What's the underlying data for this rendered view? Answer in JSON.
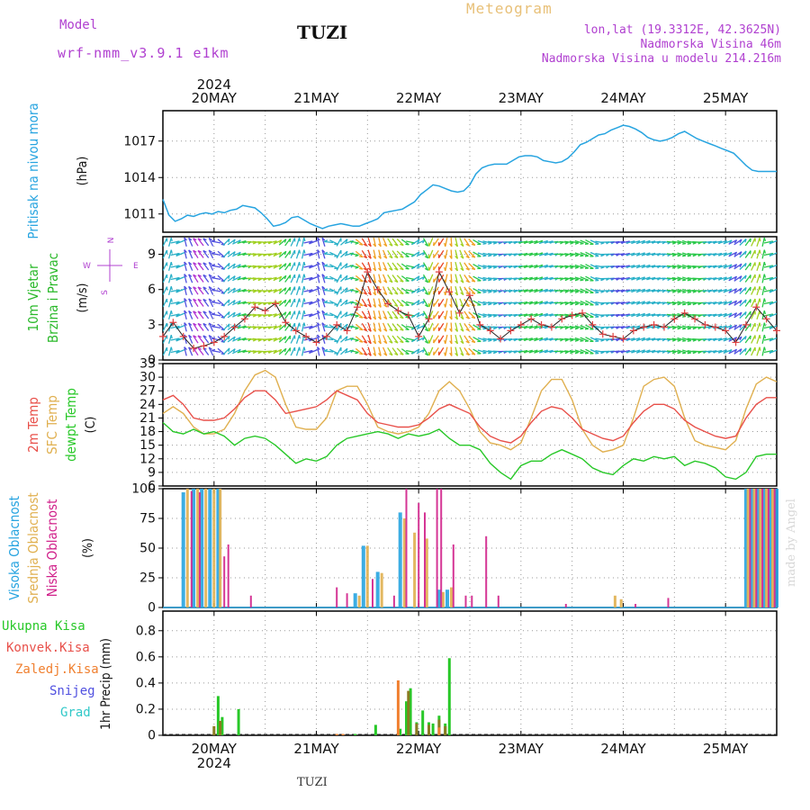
{
  "header": {
    "model_label": "Model",
    "model_name": "wrf-nmm_v3.9.1 e1km",
    "station": "TUZI",
    "meteogram": "Meteogram",
    "lonlat": "lon,lat (19.3312E, 42.3625N)",
    "altitude": "Nadmorska Visina 46m",
    "model_altitude": "Nadmorska Visina u modelu 214.216m",
    "credit": "made by Angel",
    "footer_station": "TUZI"
  },
  "colors": {
    "pressure": "#27a4e0",
    "temp2m": "#e8504a",
    "sfc_temp": "#e0b050",
    "dewpt": "#28c828",
    "high_cloud": "#27a4e0",
    "mid_cloud": "#e0b050",
    "low_cloud": "#d0208a",
    "precip_total": "#28c828",
    "precip_conv": "#e8504a",
    "precip_frozen": "#f08030",
    "snow": "#5050e0",
    "grad": "#30c8c8",
    "wind_label": "#28b828",
    "compass": "#b040d0"
  },
  "chart_data": [
    {
      "type": "line",
      "panel": "pressure",
      "ylabel_lines": [
        "Pritisak na nivou mora",
        "(hPa)"
      ],
      "ylim": [
        1009.5,
        1019.5
      ],
      "yticks": [
        1011,
        1014,
        1017
      ],
      "x_axis": {
        "top_year": "2024",
        "bottom_year": "2024",
        "dates": [
          "20MAY",
          "21MAY",
          "22MAY",
          "23MAY",
          "24MAY",
          "25MAY"
        ],
        "range_days": [
          -0.5,
          5.5
        ]
      },
      "grid": true,
      "x": [
        -0.5,
        -0.44,
        -0.38,
        -0.32,
        -0.26,
        -0.2,
        -0.14,
        -0.08,
        -0.02,
        0.04,
        0.1,
        0.16,
        0.22,
        0.28,
        0.34,
        0.4,
        0.46,
        0.52,
        0.58,
        0.64,
        0.7,
        0.76,
        0.82,
        0.88,
        0.94,
        1.0,
        1.06,
        1.12,
        1.18,
        1.24,
        1.3,
        1.36,
        1.42,
        1.48,
        1.54,
        1.6,
        1.66,
        1.72,
        1.78,
        1.84,
        1.9,
        1.96,
        2.02,
        2.08,
        2.14,
        2.2,
        2.26,
        2.32,
        2.38,
        2.44,
        2.5,
        2.56,
        2.62,
        2.68,
        2.74,
        2.8,
        2.86,
        2.92,
        2.98,
        3.04,
        3.1,
        3.16,
        3.22,
        3.28,
        3.34,
        3.4,
        3.46,
        3.52,
        3.58,
        3.64,
        3.7,
        3.76,
        3.82,
        3.88,
        3.94,
        4.0,
        4.06,
        4.12,
        4.18,
        4.24,
        4.3,
        4.36,
        4.42,
        4.48,
        4.54,
        4.6,
        4.66,
        4.72,
        4.78,
        4.84,
        4.9,
        4.96,
        5.02,
        5.08,
        5.14,
        5.2,
        5.26,
        5.32,
        5.38,
        5.44,
        5.5
      ],
      "y": [
        1012.2,
        1010.9,
        1010.4,
        1010.6,
        1010.9,
        1010.8,
        1011.0,
        1011.1,
        1011.0,
        1011.2,
        1011.1,
        1011.3,
        1011.4,
        1011.7,
        1011.6,
        1011.5,
        1011.1,
        1010.6,
        1010.0,
        1010.1,
        1010.3,
        1010.7,
        1010.8,
        1010.5,
        1010.2,
        1010.0,
        1009.8,
        1010.0,
        1010.1,
        1010.2,
        1010.1,
        1010.0,
        1010.0,
        1010.2,
        1010.4,
        1010.6,
        1011.1,
        1011.2,
        1011.3,
        1011.4,
        1011.7,
        1012.0,
        1012.6,
        1013.0,
        1013.4,
        1013.3,
        1013.1,
        1012.9,
        1012.8,
        1012.9,
        1013.4,
        1014.3,
        1014.8,
        1015.0,
        1015.1,
        1015.1,
        1015.1,
        1015.4,
        1015.7,
        1015.8,
        1015.8,
        1015.7,
        1015.4,
        1015.3,
        1015.2,
        1015.3,
        1015.6,
        1016.1,
        1016.7,
        1016.9,
        1017.2,
        1017.5,
        1017.6,
        1017.9,
        1018.1,
        1018.3,
        1018.2,
        1018.0,
        1017.7,
        1017.3,
        1017.1,
        1017.0,
        1017.1,
        1017.3,
        1017.6,
        1017.8,
        1017.5,
        1017.2,
        1017.0,
        1016.8,
        1016.6,
        1016.4,
        1016.2,
        1016.0,
        1015.5,
        1015.0,
        1014.6,
        1014.5,
        1014.5,
        1014.5,
        1014.5
      ]
    },
    {
      "type": "line",
      "panel": "wind",
      "ylabel_lines": [
        "10m Vjetar",
        "Brzina i Pravac",
        "(m/s)"
      ],
      "compass_labels": [
        "N",
        "W",
        "E",
        "S"
      ],
      "ylim": [
        0,
        10.5
      ],
      "yticks": [
        0,
        3,
        6,
        9
      ],
      "grid": true,
      "x": [
        -0.5,
        -0.4,
        -0.3,
        -0.2,
        -0.1,
        0.0,
        0.1,
        0.2,
        0.3,
        0.4,
        0.5,
        0.6,
        0.7,
        0.8,
        0.9,
        1.0,
        1.1,
        1.2,
        1.3,
        1.4,
        1.5,
        1.6,
        1.7,
        1.8,
        1.9,
        2.0,
        2.1,
        2.2,
        2.3,
        2.4,
        2.5,
        2.6,
        2.7,
        2.8,
        2.9,
        3.0,
        3.1,
        3.2,
        3.3,
        3.4,
        3.5,
        3.6,
        3.7,
        3.8,
        3.9,
        4.0,
        4.1,
        4.2,
        4.3,
        4.4,
        4.5,
        4.6,
        4.7,
        4.8,
        4.9,
        5.0,
        5.1,
        5.2,
        5.3,
        5.4,
        5.5
      ],
      "speed": [
        2.0,
        3.2,
        2.0,
        1.0,
        1.2,
        1.5,
        2.0,
        2.8,
        3.5,
        4.5,
        4.2,
        4.8,
        3.2,
        2.5,
        2.0,
        1.5,
        2.0,
        3.0,
        2.5,
        4.5,
        7.5,
        6.0,
        4.8,
        4.2,
        3.8,
        2.0,
        3.5,
        7.5,
        5.8,
        4.0,
        5.5,
        3.0,
        2.5,
        1.8,
        2.5,
        3.0,
        3.5,
        3.0,
        2.8,
        3.5,
        3.8,
        4.0,
        3.0,
        2.2,
        2.0,
        1.8,
        2.5,
        2.8,
        3.0,
        2.8,
        3.5,
        4.0,
        3.5,
        3.0,
        2.8,
        2.5,
        1.5,
        3.0,
        4.5,
        3.5,
        2.5
      ],
      "direction": [
        30,
        10,
        350,
        330,
        320,
        340,
        40,
        60,
        80,
        100,
        90,
        70,
        40,
        20,
        10,
        350,
        340,
        20,
        60,
        120,
        160,
        170,
        150,
        140,
        120,
        30,
        200,
        220,
        180,
        160,
        140,
        110,
        100,
        90,
        85,
        80,
        75,
        70,
        80,
        95,
        100,
        110,
        120,
        90,
        85,
        80,
        75,
        70,
        80,
        90,
        100,
        110,
        95,
        85,
        80,
        70,
        60,
        40,
        20,
        10,
        350
      ]
    },
    {
      "type": "line",
      "panel": "temperature",
      "ylabel_lines": [
        "2m Temp",
        "SFC Temp",
        "dewpt Temp",
        "(C)"
      ],
      "ylim": [
        6,
        33
      ],
      "yticks": [
        6,
        9,
        12,
        15,
        18,
        21,
        24,
        27,
        30,
        33
      ],
      "grid": true,
      "x": [
        -0.5,
        -0.4,
        -0.3,
        -0.2,
        -0.1,
        0.0,
        0.1,
        0.2,
        0.3,
        0.4,
        0.5,
        0.6,
        0.7,
        0.8,
        0.9,
        1.0,
        1.1,
        1.2,
        1.3,
        1.4,
        1.5,
        1.6,
        1.7,
        1.8,
        1.9,
        2.0,
        2.1,
        2.2,
        2.3,
        2.4,
        2.5,
        2.6,
        2.7,
        2.8,
        2.9,
        3.0,
        3.1,
        3.2,
        3.3,
        3.4,
        3.5,
        3.6,
        3.7,
        3.8,
        3.9,
        4.0,
        4.1,
        4.2,
        4.3,
        4.4,
        4.5,
        4.6,
        4.7,
        4.8,
        4.9,
        5.0,
        5.1,
        5.2,
        5.3,
        5.4,
        5.5
      ],
      "series": [
        {
          "name": "2m Temp",
          "values": [
            25,
            26,
            24,
            21,
            20.5,
            20.5,
            21,
            23,
            25.5,
            27,
            27,
            25,
            22,
            22.5,
            23,
            23.5,
            25,
            27,
            26,
            25,
            22,
            20,
            19.5,
            19,
            19,
            19.5,
            21,
            23,
            24,
            23,
            22,
            19,
            17,
            16,
            15.5,
            17,
            20,
            22.5,
            23.5,
            23,
            21,
            18.5,
            17.5,
            16.5,
            16,
            17,
            20,
            22.5,
            24,
            24,
            23,
            20.5,
            19,
            18,
            17,
            16.5,
            17,
            21,
            24,
            25.5,
            25.5
          ]
        },
        {
          "name": "SFC Temp",
          "values": [
            22,
            23.5,
            22,
            19,
            17.5,
            17.5,
            18.5,
            22,
            27,
            30.5,
            31.5,
            30,
            24,
            19,
            18.5,
            18.5,
            21,
            27,
            28,
            28,
            24,
            19,
            18,
            17.5,
            18,
            19,
            22,
            27,
            29,
            27,
            23,
            18,
            15.5,
            15,
            14,
            15.5,
            21,
            27,
            29.5,
            29.5,
            25,
            18.5,
            15,
            13.5,
            14,
            15,
            21,
            28,
            29.5,
            30,
            28,
            21,
            16,
            15,
            14.5,
            14,
            16,
            23,
            28.5,
            30,
            29
          ]
        },
        {
          "name": "dewpt Temp",
          "values": [
            20,
            18,
            17.5,
            18.5,
            17.5,
            18,
            17,
            15,
            16.5,
            17,
            16.5,
            15,
            13,
            11,
            12,
            11.5,
            12.5,
            15,
            16.5,
            17,
            17.5,
            18,
            17.5,
            16.5,
            17.5,
            17,
            17.5,
            18.5,
            16.5,
            15,
            15,
            14,
            11,
            9,
            7.5,
            10.5,
            11.5,
            11.5,
            13,
            14,
            13,
            12,
            10,
            9,
            8.5,
            10.5,
            12,
            11.5,
            12.5,
            12,
            12.5,
            10.5,
            11.5,
            11,
            10,
            8,
            7.5,
            9,
            12.5,
            13,
            13
          ]
        }
      ]
    },
    {
      "type": "bar",
      "panel": "clouds",
      "ylabel_lines": [
        "Visoka Oblacnost",
        "Srednja Oblacnost",
        "Niska Oblacnost",
        "(%)"
      ],
      "ylim": [
        0,
        100
      ],
      "yticks": [
        0,
        25,
        50,
        75,
        100
      ],
      "grid": true,
      "series": [
        {
          "name": "Visoka Oblacnost",
          "x": [
            -0.3,
            -0.2,
            -0.12,
            -0.04,
            0.04,
            1.38,
            1.46,
            1.6,
            1.72,
            1.82,
            1.92,
            2.2,
            2.28,
            5.2,
            5.26,
            5.32,
            5.38,
            5.44,
            5.5
          ],
          "values": [
            97,
            100,
            100,
            100,
            100,
            12,
            52,
            30,
            0,
            80,
            0,
            15,
            15,
            100,
            100,
            100,
            100,
            100,
            100
          ]
        },
        {
          "name": "Srednja Oblacnost",
          "x": [
            -0.26,
            -0.16,
            -0.08,
            0.0,
            0.06,
            1.42,
            1.5,
            1.64,
            1.86,
            1.96,
            2.08,
            2.24,
            2.32,
            3.92,
            3.98,
            5.22,
            5.28,
            5.34,
            5.4,
            5.46
          ],
          "values": [
            100,
            100,
            100,
            100,
            100,
            10,
            52,
            29,
            75,
            63,
            58,
            13,
            17,
            10,
            7,
            100,
            100,
            100,
            100,
            100
          ]
        },
        {
          "name": "Niska Oblacnost",
          "x": [
            -0.22,
            -0.14,
            0.1,
            0.14,
            0.36,
            1.2,
            1.3,
            1.55,
            1.76,
            1.88,
            2.0,
            2.06,
            2.18,
            2.22,
            2.34,
            2.46,
            2.52,
            2.66,
            2.78,
            3.44,
            4.12,
            4.44,
            5.24,
            5.3,
            5.36,
            5.42,
            5.48
          ],
          "values": [
            98,
            97,
            43,
            53,
            10,
            17,
            12,
            24,
            10,
            100,
            88,
            80,
            100,
            100,
            53,
            10,
            10,
            60,
            10,
            3,
            3,
            8,
            100,
            100,
            100,
            100,
            100
          ]
        }
      ]
    },
    {
      "type": "bar",
      "panel": "precipitation",
      "ylabel_lines": [
        "1hr Precip (mm)"
      ],
      "legend": [
        "Ukupna Kisa",
        "Konvek.Kisa",
        "Zaledj.Kisa",
        "Snijeg",
        "Grad"
      ],
      "ylim": [
        0,
        0.95
      ],
      "yticks": [
        0,
        0.2,
        0.4,
        0.6,
        0.8
      ],
      "grid": true,
      "series": [
        {
          "name": "Ukupna Kisa",
          "x": [
            0.04,
            0.08,
            0.24,
            1.38,
            1.58,
            1.82,
            1.88,
            1.92,
            1.98,
            2.04,
            2.1,
            2.14,
            2.2,
            2.26,
            2.3
          ],
          "values": [
            0.3,
            0.14,
            0.2,
            0.01,
            0.08,
            0.05,
            0.26,
            0.36,
            0.1,
            0.19,
            0.1,
            0.09,
            0.15,
            0.09,
            0.59
          ]
        },
        {
          "name": "Konvek.Kisa",
          "x": [
            0.0,
            0.06,
            1.9,
            1.98,
            2.1,
            2.2,
            2.26
          ],
          "values": [
            0.07,
            0.11,
            0.34,
            0.09,
            0.08,
            0.12,
            0.07
          ]
        },
        {
          "name": "Zaledj.Kisa",
          "x": [
            1.2,
            1.26,
            1.8,
            2.2
          ],
          "values": [
            0.01,
            0.01,
            0.42,
            0.06
          ]
        }
      ]
    }
  ]
}
